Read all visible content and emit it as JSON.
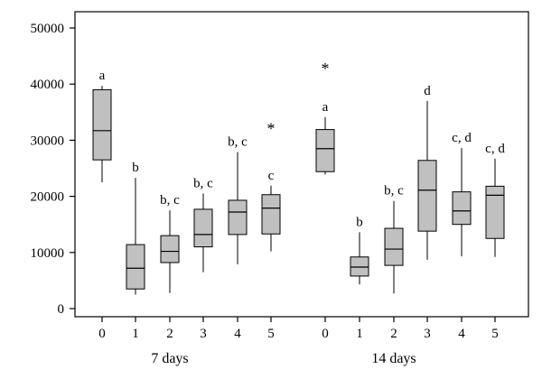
{
  "chart_data": {
    "type": "box",
    "ylim": [
      0,
      50000
    ],
    "y_ticks": [
      "0",
      "10000",
      "20000",
      "30000",
      "40000",
      "50000"
    ],
    "y_tick_values": [
      0,
      10000,
      20000,
      30000,
      40000,
      50000
    ],
    "grid": false,
    "colors": {
      "box_fill": "#c0c0c0",
      "stroke": "#000000"
    },
    "groups": [
      {
        "label": "7 days",
        "boxes": [
          {
            "x": "0",
            "min": 22500,
            "q1": 26500,
            "median": 31700,
            "q3": 39000,
            "max": 39700,
            "letter": "a",
            "outlier": null
          },
          {
            "x": "1",
            "min": 2500,
            "q1": 3500,
            "median": 7200,
            "q3": 11400,
            "max": 23300,
            "letter": "b",
            "outlier": null
          },
          {
            "x": "2",
            "min": 2800,
            "q1": 8200,
            "median": 10200,
            "q3": 13000,
            "max": 17500,
            "letter": "b, c",
            "outlier": null
          },
          {
            "x": "3",
            "min": 6500,
            "q1": 11000,
            "median": 13200,
            "q3": 17700,
            "max": 20500,
            "letter": "b, c",
            "outlier": null
          },
          {
            "x": "4",
            "min": 7900,
            "q1": 13200,
            "median": 17200,
            "q3": 19300,
            "max": 27900,
            "letter": "b, c",
            "outlier": null
          },
          {
            "x": "5",
            "min": 10200,
            "q1": 13300,
            "median": 17900,
            "q3": 20300,
            "max": 21900,
            "letter": "c",
            "outlier": 33000
          }
        ]
      },
      {
        "label": "14 days",
        "boxes": [
          {
            "x": "0",
            "min": 23900,
            "q1": 24400,
            "median": 28500,
            "q3": 31900,
            "max": 34100,
            "letter": "a",
            "outlier": 43700
          },
          {
            "x": "1",
            "min": 4300,
            "q1": 5800,
            "median": 7400,
            "q3": 9200,
            "max": 13600,
            "letter": "b",
            "outlier": null
          },
          {
            "x": "2",
            "min": 2700,
            "q1": 7700,
            "median": 10600,
            "q3": 14300,
            "max": 19200,
            "letter": "b, c",
            "outlier": null
          },
          {
            "x": "3",
            "min": 8700,
            "q1": 13800,
            "median": 21100,
            "q3": 26400,
            "max": 37000,
            "letter": "d",
            "outlier": null
          },
          {
            "x": "4",
            "min": 9300,
            "q1": 15000,
            "median": 17400,
            "q3": 20800,
            "max": 28600,
            "letter": "c, d",
            "outlier": null
          },
          {
            "x": "5",
            "min": 9200,
            "q1": 12500,
            "median": 20200,
            "q3": 21800,
            "max": 26700,
            "letter": "c, d",
            "outlier": null
          }
        ]
      }
    ]
  }
}
